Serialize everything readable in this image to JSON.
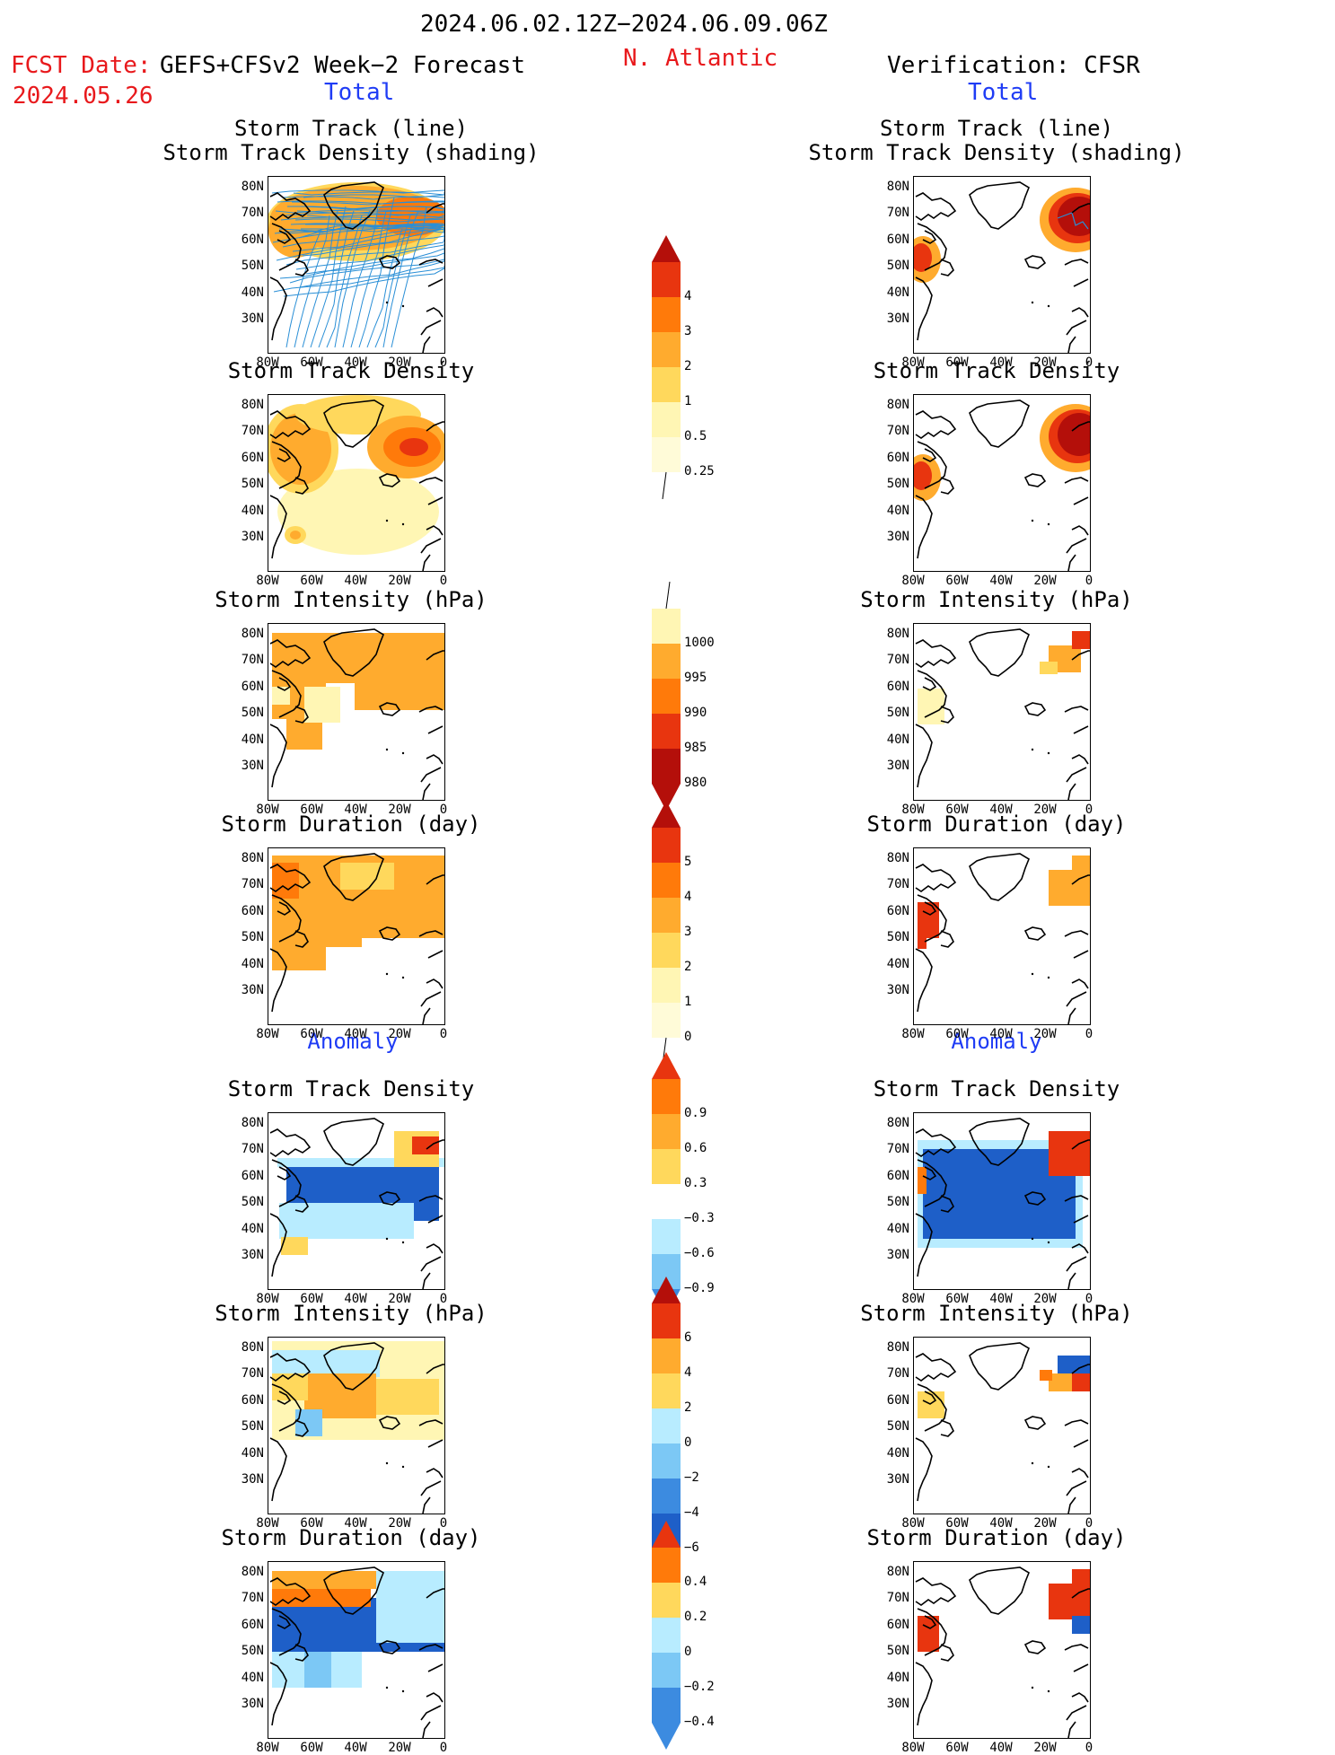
{
  "header": {
    "period": "2024.06.02.12Z−2024.06.09.06Z",
    "region": "N. Atlantic",
    "fcst_label": "FCST Date:",
    "fcst_date": "2024.05.26",
    "forecast_source": "GEFS+CFSv2 Week−2 Forecast",
    "verification": "Verification: CFSR",
    "left_total": "Total",
    "right_total": "Total",
    "left_anomaly": "Anomaly",
    "right_anomaly": "Anomaly"
  },
  "panels": {
    "track_line_1": "Storm Track (line)",
    "track_line_2": "Storm Track Density (shading)",
    "density": "Storm Track Density",
    "intensity": "Storm Intensity (hPa)",
    "duration": "Storm Duration (day)"
  },
  "axes": {
    "lat": [
      "80N",
      "70N",
      "60N",
      "50N",
      "40N",
      "30N"
    ],
    "lon": [
      "80W",
      "60W",
      "40W",
      "20W",
      "0"
    ]
  },
  "colorbars": {
    "density": [
      "4",
      "3",
      "2",
      "1",
      "0.5",
      "0.25"
    ],
    "intensity": [
      "1000",
      "995",
      "990",
      "985",
      "980"
    ],
    "duration": [
      "5",
      "4",
      "3",
      "2",
      "1",
      "0"
    ],
    "density_anom": [
      "0.9",
      "0.6",
      "0.3",
      "−0.3",
      "−0.6",
      "−0.9"
    ],
    "intensity_anom": [
      "6",
      "4",
      "2",
      "0",
      "−2",
      "−4",
      "−6"
    ],
    "duration_anom": [
      "0.4",
      "0.2",
      "0",
      "−0.2",
      "−0.4"
    ]
  },
  "colors": {
    "title_red": "#e8191c",
    "label_blue": "#1f3cf5",
    "track_blue": "#2a8fd6",
    "warm": [
      "#fff6b4",
      "#ffd85c",
      "#ffab2e",
      "#ff7a0a",
      "#e8350f",
      "#b40f0a"
    ],
    "cool": [
      "#b8ecff",
      "#7cc8f5",
      "#3c8be0",
      "#1e5fc8"
    ]
  }
}
